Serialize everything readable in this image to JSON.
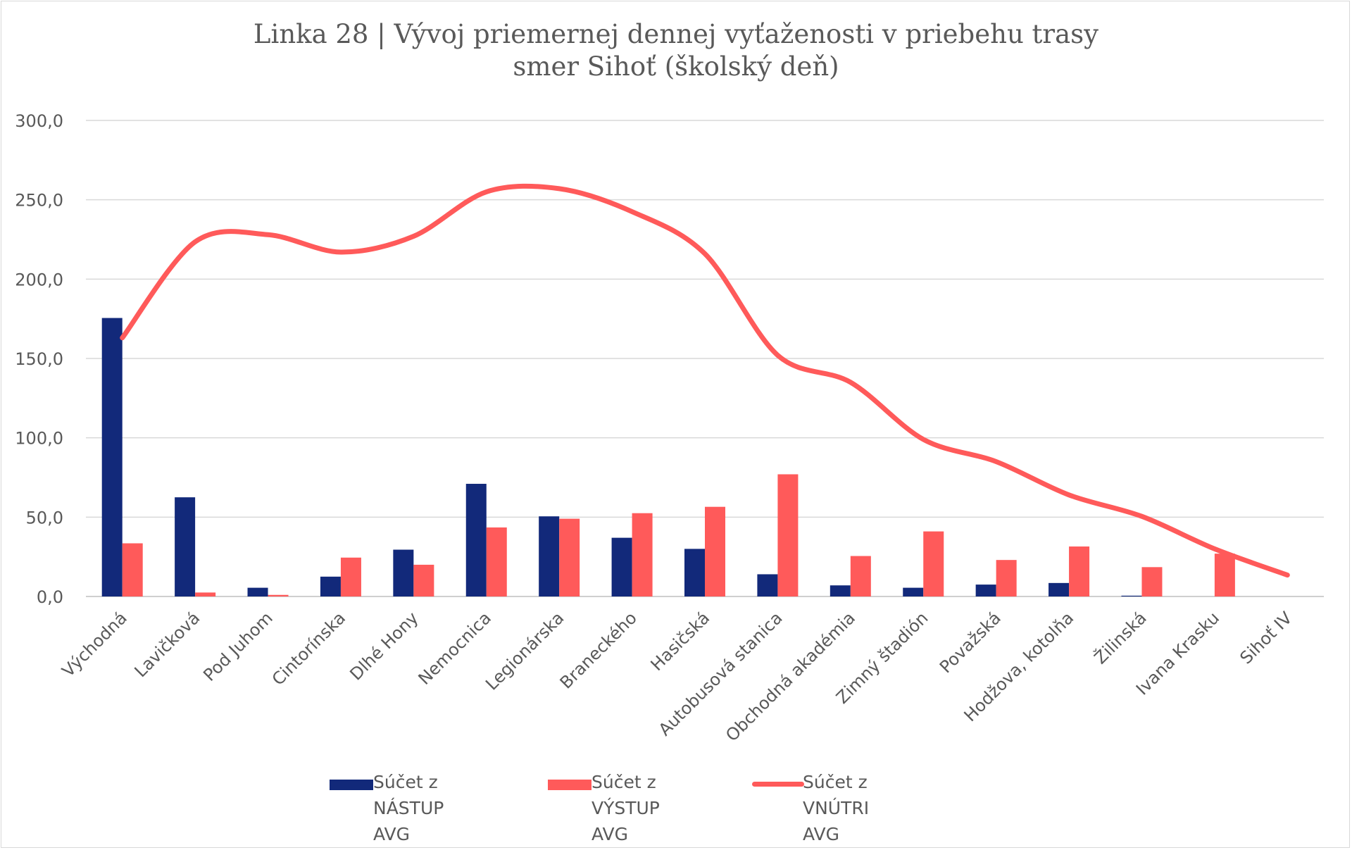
{
  "chart_data": {
    "type": "bar",
    "title_lines": [
      "Linka 28 | Vývoj priemernej dennej vyťaženosti v priebehu trasy",
      "smer Sihoť (školský deň)"
    ],
    "xlabel": "",
    "ylabel": "",
    "ylim": [
      0,
      300
    ],
    "yticks": [
      "0,0",
      "50,0",
      "100,0",
      "150,0",
      "200,0",
      "250,0",
      "300,0"
    ],
    "grid": true,
    "legend_position": "bottom",
    "categories": [
      "Východná",
      "Lavičková",
      "Pod Juhom",
      "Cintorínska",
      "Dlhé Hony",
      "Nemocnica",
      "Legionárska",
      "Braneckého",
      "Hasičská",
      "Autobusová stanica",
      "Obchodná akadémia",
      "Zimný štadión",
      "Považská",
      "Hodžova, kotolňa",
      "Žilinská",
      "Ivana Krasku",
      "Sihoť IV"
    ],
    "series": [
      {
        "name": "Súčet z NÁSTUP\nAVG",
        "type": "bar",
        "color": "#12297a",
        "values": [
          175.5,
          62.5,
          5.5,
          12.5,
          29.5,
          71.0,
          50.5,
          37.0,
          30.0,
          14.0,
          7.0,
          5.5,
          7.5,
          8.5,
          0.5,
          0.0,
          0.0
        ]
      },
      {
        "name": "Súčet z VÝSTUP\nAVG",
        "type": "bar",
        "color": "#ff5a5a",
        "values": [
          33.5,
          2.5,
          1.0,
          24.5,
          20.0,
          43.5,
          49.0,
          52.5,
          56.5,
          77.0,
          25.5,
          41.0,
          23.0,
          31.5,
          18.5,
          27.0,
          0.0
        ]
      },
      {
        "name": "Súčet z VNÚTRI\nAVG",
        "type": "line",
        "color": "#ff5a5a",
        "values": [
          163.0,
          223.5,
          228.0,
          217.0,
          227.0,
          255.0,
          257.0,
          242.5,
          216.0,
          152.0,
          135.0,
          99.0,
          85.0,
          64.0,
          50.5,
          30.0,
          13.5
        ]
      }
    ]
  }
}
